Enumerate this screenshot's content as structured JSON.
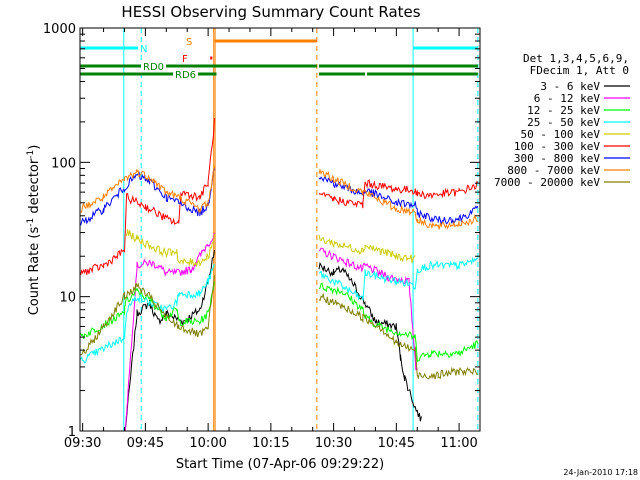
{
  "chart_data": {
    "type": "line",
    "title": "HESSI Observing Summary Count Rates",
    "xlabel": "Start Time (07-Apr-06 09:29:22)",
    "ylabel": "Count Rate (s-1 detector-1)",
    "ylabel_parts": [
      "Count Rate (s",
      "-1",
      " detector",
      "-1",
      ")"
    ],
    "footer": "24-Jan-2010 17:18",
    "x_ticks": [
      "09:30",
      "09:45",
      "10:00",
      "10:15",
      "10:30",
      "10:45",
      "11:00"
    ],
    "y_ticks": [
      "1",
      "10",
      "100",
      "1000"
    ],
    "ylim": [
      1,
      1000
    ],
    "y_scale": "log",
    "xlim": [
      "09:29:22",
      "11:05:00"
    ],
    "legend_header": [
      "Det 1,3,4,5,6,9,",
      "FDecim 1, Att 0"
    ],
    "legend_position": "right",
    "gaps": [
      [
        "10:01:30",
        "10:26:30"
      ]
    ],
    "series": [
      {
        "name": "3 - 6 keV",
        "color": "#000000",
        "x": [
          "09:29:30",
          "09:40:00",
          "09:40:10",
          "09:43:00",
          "09:46:00",
          "09:48:00",
          "09:50:00",
          "09:54:00",
          "09:58:00",
          "10:00:00",
          "10:01:30",
          "10:26:30",
          "10:30:00",
          "10:32:00",
          "10:35:00",
          "10:37:30",
          "10:40:00",
          "10:45:00",
          "10:46:00",
          "10:47:00",
          "10:49:30",
          "10:51:00",
          "10:52:00"
        ],
        "y": [
          null,
          null,
          1.0,
          7.5,
          9,
          6.5,
          7.5,
          6.5,
          8,
          13,
          22,
          17,
          15,
          16,
          12,
          9,
          6.5,
          6,
          3.5,
          2.5,
          1.5,
          1.2,
          null
        ]
      },
      {
        "name": "6 - 12 keV",
        "color": "#ff00ff",
        "x": [
          "09:29:30",
          "09:40:00",
          "09:40:10",
          "09:43:00",
          "09:46:00",
          "09:48:00",
          "09:50:00",
          "09:52:30",
          "09:56:00",
          "10:00:00",
          "10:01:30",
          "10:26:30",
          "10:30:00",
          "10:37:00",
          "10:37:30",
          "10:43:00",
          "10:48:00",
          "10:49:40",
          "10:50:00",
          "11:05:00"
        ],
        "y": [
          null,
          null,
          1.0,
          17,
          18,
          17,
          15,
          15,
          16,
          25,
          28,
          22,
          20,
          16,
          17,
          14,
          13,
          3,
          3,
          null
        ]
      },
      {
        "name": "12 - 25 keV",
        "color": "#00ff00",
        "x": [
          "09:29:30",
          "09:40:00",
          "09:40:10",
          "09:43:00",
          "09:46:00",
          "09:50:00",
          "09:52:30",
          "09:53:00",
          "09:58:00",
          "10:00:00",
          "10:01:30",
          "10:26:30",
          "10:32:00",
          "10:37:00",
          "10:37:30",
          "10:41:00",
          "10:45:00",
          "10:49:30",
          "10:50:00",
          "10:53:00",
          "11:00:00",
          "11:04:30"
        ],
        "y": [
          5,
          7.5,
          9,
          11,
          9.5,
          7,
          8,
          6.5,
          6.5,
          7.5,
          13,
          12,
          11,
          8,
          7,
          6,
          5.5,
          5,
          3.5,
          3.8,
          3.8,
          4.5
        ]
      },
      {
        "name": "25 - 50 keV",
        "color": "#00ffff",
        "x": [
          "09:29:30",
          "09:40:00",
          "09:40:30",
          "09:43:00",
          "09:46:00",
          "09:50:00",
          "09:52:30",
          "09:53:00",
          "09:58:00",
          "10:00:00",
          "10:01:30",
          "10:26:30",
          "10:32:00",
          "10:37:00",
          "10:37:30",
          "10:41:00",
          "10:45:00",
          "10:48:00",
          "10:49:30",
          "10:50:00",
          "10:53:00",
          "11:00:00",
          "11:04:30"
        ],
        "y": [
          3.3,
          5,
          8,
          10,
          9,
          8,
          9,
          10.5,
          10.5,
          13,
          17,
          15,
          12,
          9.5,
          15,
          14,
          13,
          12.5,
          12,
          16,
          17,
          17,
          19
        ]
      },
      {
        "name": "50 - 100 keV",
        "color": "#cccc00",
        "x": [
          "09:29:30",
          "09:40:00",
          "09:40:30",
          "09:43:00",
          "09:46:00",
          "09:50:00",
          "09:52:30",
          "09:53:00",
          "09:58:00",
          "10:00:00",
          "10:01:30",
          "10:26:30",
          "10:32:00",
          "10:37:00",
          "10:37:30",
          "10:45:00",
          "10:49:30",
          "10:50:00",
          "10:55:00",
          "11:04:30"
        ],
        "y": [
          null,
          null,
          30,
          27,
          24,
          21,
          22,
          18,
          18,
          20,
          28,
          27,
          24,
          22,
          24,
          20,
          19,
          null,
          null,
          null
        ]
      },
      {
        "name": "100 - 300 keV",
        "color": "#ff0000",
        "x": [
          "09:29:30",
          "09:35:00",
          "09:40:00",
          "09:40:30",
          "09:45:00",
          "09:50:00",
          "09:53:00",
          "09:53:30",
          "09:58:00",
          "10:00:00",
          "10:01:30",
          "10:26:30",
          "10:30:00",
          "10:37:00",
          "10:37:30",
          "10:45:00",
          "10:49:30",
          "10:50:00",
          "10:53:00",
          "11:00:00",
          "11:04:30"
        ],
        "y": [
          15,
          17,
          22,
          55,
          47,
          38,
          35,
          60,
          55,
          70,
          200,
          57,
          53,
          48,
          70,
          63,
          62,
          58,
          57,
          60,
          68
        ]
      },
      {
        "name": "300 - 800 keV",
        "color": "#0000ff",
        "x": [
          "09:29:30",
          "09:35:00",
          "09:40:00",
          "09:43:00",
          "09:46:00",
          "09:50:00",
          "09:53:00",
          "09:58:00",
          "10:00:00",
          "10:01:30",
          "10:26:30",
          "10:30:00",
          "10:37:00",
          "10:37:30",
          "10:45:00",
          "10:49:30",
          "10:50:00",
          "10:55:00",
          "11:00:00",
          "11:04:30"
        ],
        "y": [
          35,
          45,
          65,
          80,
          72,
          55,
          50,
          42,
          48,
          95,
          80,
          70,
          58,
          62,
          50,
          48,
          42,
          37,
          38,
          45
        ]
      },
      {
        "name": "800 - 7000 keV",
        "color": "#ff8000",
        "x": [
          "09:29:30",
          "09:35:00",
          "09:40:00",
          "09:43:00",
          "09:46:00",
          "09:50:00",
          "09:53:00",
          "09:58:00",
          "10:00:00",
          "10:01:30",
          "10:26:30",
          "10:30:00",
          "10:37:00",
          "10:37:30",
          "10:45:00",
          "10:49:30",
          "10:50:00",
          "10:55:00",
          "11:00:00",
          "11:04:30"
        ],
        "y": [
          45,
          55,
          75,
          85,
          78,
          60,
          55,
          45,
          50,
          90,
          88,
          75,
          60,
          60,
          45,
          43,
          37,
          33,
          35,
          38
        ]
      },
      {
        "name": "7000 - 20000 keV",
        "color": "#808000",
        "x": [
          "09:29:30",
          "09:35:00",
          "09:40:00",
          "09:43:00",
          "09:46:00",
          "09:50:00",
          "09:53:00",
          "09:58:00",
          "10:00:00",
          "10:01:30",
          "10:26:30",
          "10:32:00",
          "10:37:00",
          "10:41:00",
          "10:45:00",
          "10:49:30",
          "10:50:00",
          "10:55:00",
          "11:00:00",
          "11:04:30"
        ],
        "y": [
          3.5,
          6,
          10,
          12,
          10,
          7,
          6,
          5.2,
          5.8,
          14,
          10,
          8.5,
          7,
          6,
          4.5,
          4,
          2.6,
          2.6,
          2.8,
          2.7
        ]
      }
    ],
    "flags": [
      {
        "label": "N",
        "color": "#00ffff",
        "segments": [
          [
            "09:29:30",
            "09:43:30"
          ],
          [
            "10:49:00",
            "11:04:30"
          ]
        ]
      },
      {
        "label": "S",
        "color": "#ff8000",
        "segments": [
          [
            "10:01:30",
            "10:26:00"
          ]
        ]
      },
      {
        "label": "F",
        "color": "#ff0000",
        "segments": [
          [
            "10:00:30",
            "10:01:00"
          ]
        ]
      },
      {
        "label": "RD0",
        "color": "#008000",
        "segments": [
          [
            "09:29:30",
            "10:26:00"
          ],
          [
            "10:26:30",
            "11:04:30"
          ]
        ]
      },
      {
        "label": "RD6",
        "color": "#008000",
        "segments": [
          [
            "09:29:30",
            "10:02:00"
          ],
          [
            "10:26:30",
            "10:37:30"
          ],
          [
            "10:38:00",
            "11:04:30"
          ]
        ]
      }
    ],
    "vlines": [
      {
        "x": "09:39:50",
        "color": "#00ffff",
        "dash": false
      },
      {
        "x": "09:44:00",
        "color": "#00ffff",
        "dash": true
      },
      {
        "x": "10:01:20",
        "color": "#ff8000",
        "dash": false
      },
      {
        "x": "10:01:40",
        "color": "#ff8000",
        "dash": false
      },
      {
        "x": "10:26:00",
        "color": "#ff8000",
        "dash": true
      },
      {
        "x": "10:49:00",
        "color": "#00ffff",
        "dash": false
      },
      {
        "x": "11:04:30",
        "color": "#00ffff",
        "dash": true
      }
    ]
  }
}
